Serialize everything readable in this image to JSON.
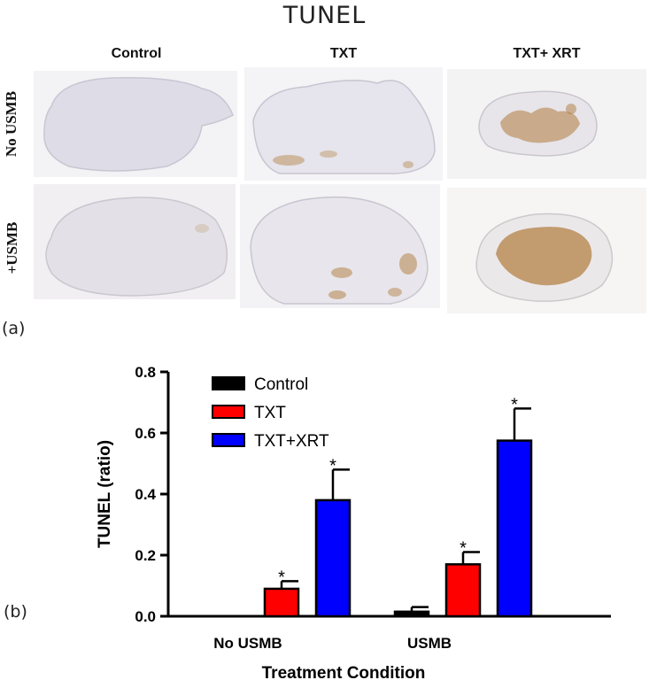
{
  "figure": {
    "title": "TUNEL",
    "panel_a_tag": "(a)",
    "panel_b_tag": "(b)"
  },
  "micrographs": {
    "column_labels": [
      "Control",
      "TXT",
      "TXT+ XRT"
    ],
    "row_labels": [
      "No USMB",
      "+USMB"
    ],
    "stain_color": "#b07a3a",
    "tissue_color": "#e4e2e9"
  },
  "chart_data": {
    "type": "bar",
    "categories": [
      "No USMB",
      "USMB"
    ],
    "series": [
      {
        "name": "Control",
        "color": "#000000",
        "values": [
          0.0,
          0.015
        ],
        "errors": [
          0.0,
          0.015
        ],
        "significant": [
          false,
          false
        ]
      },
      {
        "name": "TXT",
        "color": "#ff0000",
        "values": [
          0.09,
          0.17
        ],
        "errors": [
          0.025,
          0.04
        ],
        "significant": [
          true,
          true
        ]
      },
      {
        "name": "TXT+XRT",
        "color": "#0000ff",
        "values": [
          0.38,
          0.575
        ],
        "errors": [
          0.1,
          0.105
        ],
        "significant": [
          true,
          true
        ]
      }
    ],
    "ylabel": "TUNEL (ratio)",
    "xlabel": "Treatment Condition",
    "ylim": [
      0,
      0.8
    ],
    "yticks": [
      "0.0",
      "0.2",
      "0.4",
      "0.6",
      "0.8"
    ],
    "significance_marker": "*",
    "legend_position": "top-left",
    "grid": false
  }
}
